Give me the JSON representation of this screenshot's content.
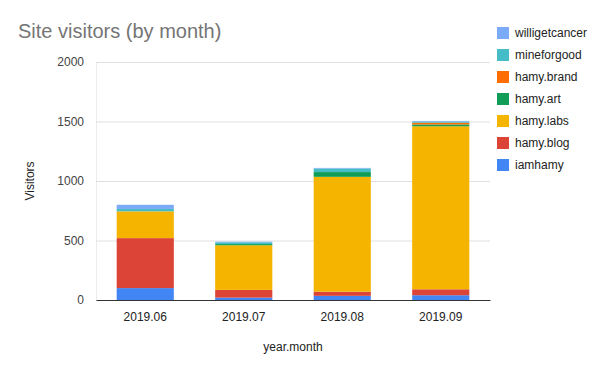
{
  "chart_data": {
    "type": "bar",
    "stacked": true,
    "title": "Site visitors (by month)",
    "x_label": "year.month",
    "y_label": "Visitors",
    "categories": [
      "2019.06",
      "2019.07",
      "2019.08",
      "2019.09"
    ],
    "series": [
      {
        "name": "iamhamy",
        "color": "#4285f4",
        "values": [
          100,
          20,
          35,
          40
        ]
      },
      {
        "name": "hamy.blog",
        "color": "#db4437",
        "values": [
          420,
          65,
          35,
          50
        ]
      },
      {
        "name": "hamy.labs",
        "color": "#f4b400",
        "values": [
          225,
          375,
          965,
          1370
        ]
      },
      {
        "name": "hamy.art",
        "color": "#0f9d58",
        "values": [
          0,
          10,
          40,
          15
        ]
      },
      {
        "name": "hamy.brand",
        "color": "#ff6d00",
        "values": [
          0,
          0,
          0,
          15
        ]
      },
      {
        "name": "mineforgood",
        "color": "#46bdc6",
        "values": [
          20,
          15,
          30,
          10
        ]
      },
      {
        "name": "willigetcancer",
        "color": "#7baaf7",
        "values": [
          35,
          5,
          5,
          5
        ]
      }
    ],
    "ylim": [
      0,
      2000
    ],
    "yticks": [
      0,
      500,
      1000,
      1500,
      2000
    ],
    "grid": true,
    "legend": "right"
  }
}
